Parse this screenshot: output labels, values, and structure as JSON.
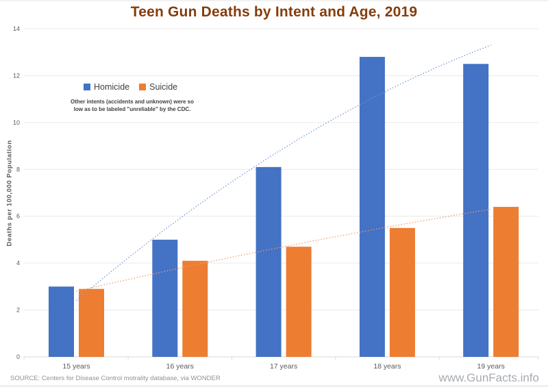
{
  "title": "Teen Gun Deaths by Intent and Age, 2019",
  "colors": {
    "title": "#843C0C",
    "homicide": "#4472C4",
    "suicide": "#ED7D31",
    "gridline": "#E9E9E9",
    "axis_line": "#D9D9D9",
    "tick_text": "#595959"
  },
  "legend": {
    "items": [
      {
        "label": "Homicide",
        "color": "#4472C4"
      },
      {
        "label": "Suicide",
        "color": "#ED7D31"
      }
    ]
  },
  "note_line1": "Other intents (accidents and unknown) were so",
  "note_line2": "low as to be labeled \"unreliable\" by the CDC.",
  "source": "SOURCE: Centers for Disease Control motrality database, via WONDER",
  "watermark": "www.GunFacts.info",
  "chart_data": {
    "type": "bar",
    "title": "Teen Gun Deaths by Intent and Age, 2019",
    "categories": [
      "15 years",
      "16 years",
      "17 years",
      "18 years",
      "19 years"
    ],
    "series": [
      {
        "name": "Homicide",
        "color": "#4472C4",
        "values": [
          3.0,
          5.0,
          8.1,
          12.8,
          12.5
        ]
      },
      {
        "name": "Suicide",
        "color": "#ED7D31",
        "values": [
          2.9,
          4.1,
          4.7,
          5.5,
          6.4
        ]
      }
    ],
    "trendlines": [
      {
        "name": "homicide-trendline",
        "series": "Homicide",
        "color": "#7298D8",
        "style": "dotted",
        "shape": "curved",
        "start_value": 2.4,
        "mid_value": 8.9,
        "end_value": 13.3
      },
      {
        "name": "suicide-trendline",
        "series": "Suicide",
        "color": "#F09D6C",
        "style": "dotted",
        "shape": "curved",
        "start_value": 2.8,
        "mid_value": 4.7,
        "end_value": 6.3
      }
    ],
    "xlabel": "",
    "ylabel": "Deaths per 100,000 Population",
    "ylim": [
      0,
      14
    ],
    "ytick_interval": 2,
    "yticks": [
      0,
      2,
      4,
      6,
      8,
      10,
      12,
      14
    ],
    "grid": true,
    "legend_position": "inside-top-left"
  }
}
